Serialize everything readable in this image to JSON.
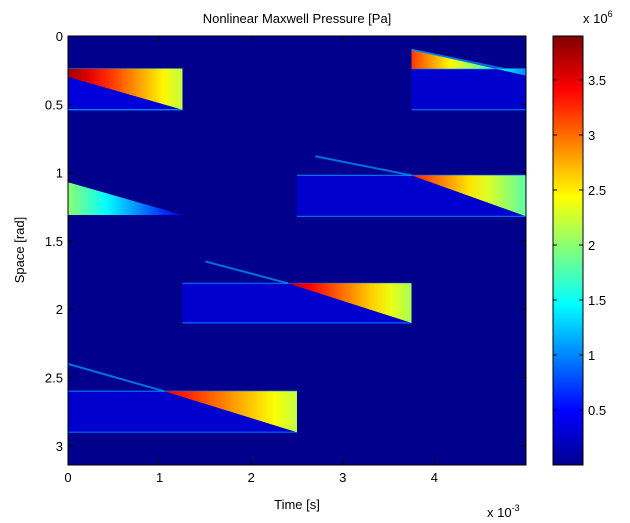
{
  "chart_data": {
    "type": "heatmap",
    "title": "Nonlinear Maxwell Pressure [Pa]",
    "xlabel": "Time [s]",
    "ylabel": "Space [rad]",
    "x_exponent_label": "x 10",
    "x_exponent_power": "-3",
    "xlim": [
      0,
      5
    ],
    "ylim": [
      0,
      3.14
    ],
    "y_reversed": true,
    "x_ticks": [
      0,
      1,
      2,
      3,
      4
    ],
    "x_tick_labels": [
      "0",
      "1",
      "2",
      "3",
      "4"
    ],
    "y_ticks": [
      0,
      0.5,
      1,
      1.5,
      2,
      2.5,
      3
    ],
    "y_tick_labels": [
      "0",
      "0.5",
      "1",
      "1.5",
      "2",
      "2.5",
      "3"
    ],
    "colorbar": {
      "range": [
        0,
        3.9
      ],
      "exponent_label": "x 10",
      "exponent_power": "6",
      "ticks": [
        0.5,
        1,
        1.5,
        2,
        2.5,
        3,
        3.5
      ],
      "tick_labels": [
        "0.5",
        "1",
        "1.5",
        "2",
        "2.5",
        "3",
        "3.5"
      ],
      "colormap": "jet"
    },
    "background_value": 0.05,
    "regions": [
      {
        "kind": "band",
        "x0": 0,
        "x1": 1.25,
        "y_top": 0.24,
        "y_bottom": 0.54,
        "value": 0.35
      },
      {
        "kind": "wedge",
        "x0": 0,
        "x1": 1.25,
        "y_edge": 0.24,
        "y_tip_at_x0": 0.3,
        "y_tip_at_x1": 0.54,
        "peak": 3.8,
        "tail": 2.2
      },
      {
        "kind": "band",
        "x0": 3.75,
        "x1": 5.0,
        "y_top": 0.24,
        "y_bottom": 0.54,
        "value": 0.3
      },
      {
        "kind": "wedge",
        "x0": 3.75,
        "x1": 5.0,
        "y_edge": 0.24,
        "y_tip_at_x0": 0.1,
        "y_tip_at_x1": 0.29,
        "peak": 3.2,
        "tail": 1.0
      },
      {
        "kind": "wedge",
        "x0": 0,
        "x1": 1.25,
        "y_edge": 1.31,
        "y_tip_at_x0": 1.07,
        "y_tip_at_x1": 1.31,
        "peak": 2.0,
        "tail": 0.4
      },
      {
        "kind": "band",
        "x0": 2.5,
        "x1": 5.0,
        "y_top": 1.02,
        "y_bottom": 1.32,
        "value": 0.3
      },
      {
        "kind": "wedge",
        "x0": 3.75,
        "x1": 5.0,
        "y_edge": 1.02,
        "y_tip_at_x0": 1.02,
        "y_tip_at_x1": 1.32,
        "peak": 3.3,
        "tail": 1.8
      },
      {
        "kind": "band",
        "x0": 1.25,
        "x1": 3.75,
        "y_top": 1.81,
        "y_bottom": 2.1,
        "value": 0.3
      },
      {
        "kind": "wedge",
        "x0": 2.4,
        "x1": 3.75,
        "y_edge": 1.81,
        "y_tip_at_x0": 1.81,
        "y_tip_at_x1": 2.1,
        "peak": 3.7,
        "tail": 2.1
      },
      {
        "kind": "band",
        "x0": 0,
        "x1": 2.5,
        "y_top": 2.6,
        "y_bottom": 2.9,
        "value": 0.3
      },
      {
        "kind": "wedge",
        "x0": 1.05,
        "x1": 2.5,
        "y_edge": 2.6,
        "y_tip_at_x0": 2.6,
        "y_tip_at_x1": 2.9,
        "peak": 3.5,
        "tail": 2.2
      }
    ],
    "ridges": [
      {
        "x0": 3.75,
        "y0": 0.1,
        "x1": 4.75,
        "y1": 0.24
      },
      {
        "x0": 2.7,
        "y0": 0.88,
        "x1": 3.75,
        "y1": 1.02
      },
      {
        "x0": 1.5,
        "y0": 1.65,
        "x1": 2.4,
        "y1": 1.81
      },
      {
        "x0": 0,
        "y0": 2.4,
        "x1": 1.05,
        "y1": 2.6
      }
    ]
  }
}
